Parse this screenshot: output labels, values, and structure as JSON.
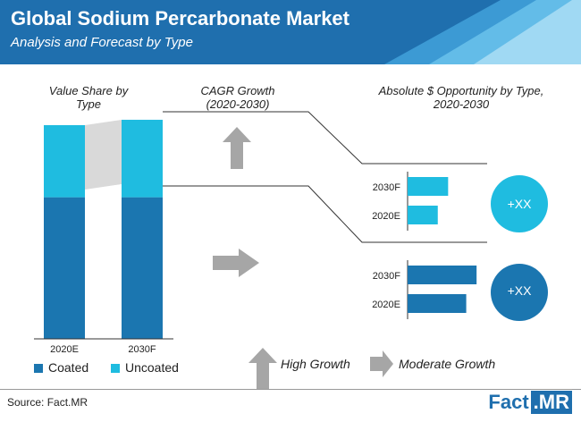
{
  "header": {
    "title": "Global Sodium Percarbonate Market",
    "subtitle": "Analysis and Forecast by Type"
  },
  "sections": {
    "value_share": "Value Share by Type",
    "cagr": "CAGR Growth (2020-2030)",
    "opportunity": "Absolute $ Opportunity by Type, 2020-2030"
  },
  "colors": {
    "coated": "#1b76b0",
    "uncoated": "#1fbce0",
    "header_bg": "#1f6fae",
    "arrow_gray": "#a6a6a6"
  },
  "chart_data": [
    {
      "type": "bar",
      "stacked": true,
      "title": "Value Share by Type",
      "categories": [
        "2020E",
        "2030F"
      ],
      "series": [
        {
          "name": "Coated",
          "values": [
            53,
            53
          ],
          "color": "#1b76b0"
        },
        {
          "name": "Uncoated",
          "values": [
            27,
            29
          ],
          "color": "#1fbce0"
        }
      ],
      "ylim": [
        0,
        85
      ],
      "legend": "bottom"
    },
    {
      "type": "bar",
      "orientation": "horizontal",
      "title": "Absolute $ Opportunity by Type, 2020-2030",
      "groups": [
        {
          "segment": "Uncoated",
          "color": "#1fbce0",
          "growth": "High Growth",
          "opportunity_label": "+XX",
          "categories": [
            "2030F",
            "2020E"
          ],
          "values": [
            47,
            35
          ]
        },
        {
          "segment": "Coated",
          "color": "#1b76b0",
          "growth": "Moderate Growth",
          "opportunity_label": "+XX",
          "categories": [
            "2030F",
            "2020E"
          ],
          "values": [
            80,
            68
          ]
        }
      ],
      "xlim": [
        0,
        85
      ]
    }
  ],
  "key": {
    "high": "High Growth",
    "moderate": "Moderate Growth"
  },
  "legend": {
    "coated": "Coated",
    "uncoated": "Uncoated"
  },
  "footer": {
    "source": "Source: Fact.MR",
    "brand_a": "Fact",
    "brand_b": ".MR"
  }
}
